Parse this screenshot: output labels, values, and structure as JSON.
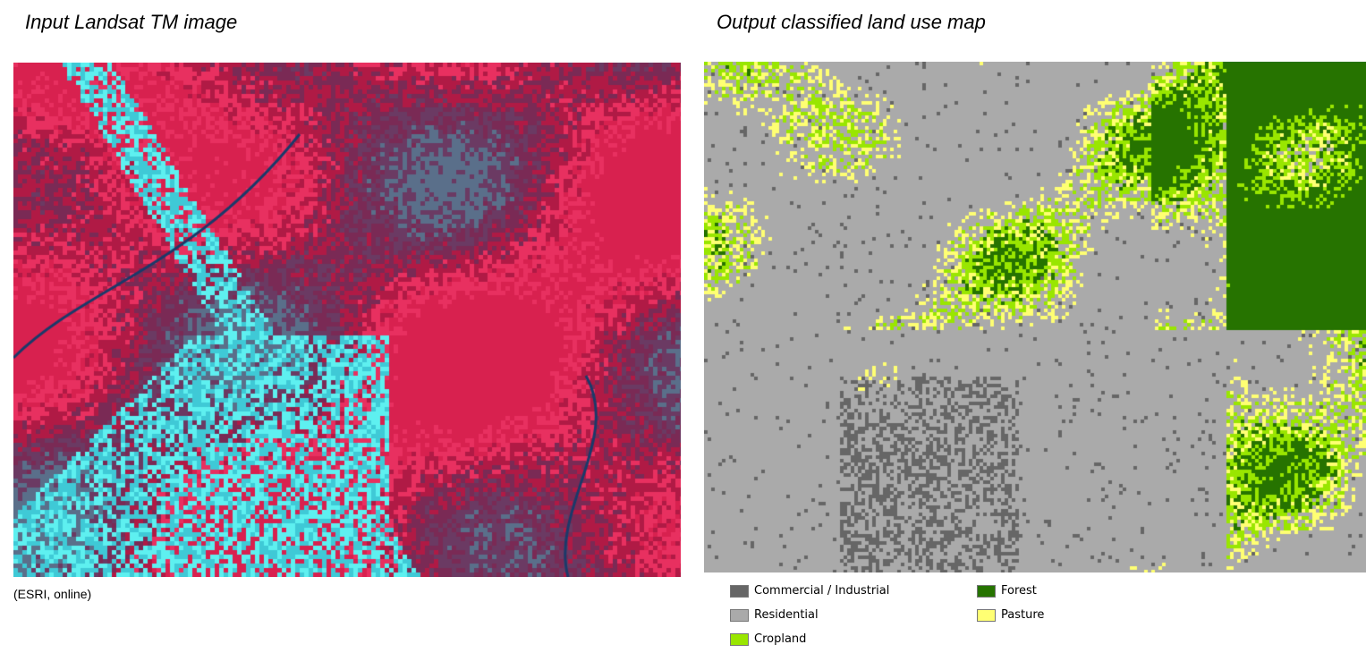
{
  "left_panel": {
    "title": "Input Landsat TM image",
    "credit": "(ESRI, online)",
    "palette": [
      "#d8214f",
      "#b01a45",
      "#8e2150",
      "#6b3a63",
      "#5a6f8a",
      "#3fc9d6",
      "#5ef0f0",
      "#e83060",
      "#7a2a55",
      "#4a8fb0"
    ]
  },
  "right_panel": {
    "title": "Output classified land use map"
  },
  "legend": [
    {
      "label": "Commercial / Industrial",
      "color": "#666666"
    },
    {
      "label": "Residential",
      "color": "#aaaaaa"
    },
    {
      "label": "Cropland",
      "color": "#99e600"
    },
    {
      "label": "Forest",
      "color": "#267300"
    },
    {
      "label": "Pasture",
      "color": "#ffff73"
    }
  ]
}
